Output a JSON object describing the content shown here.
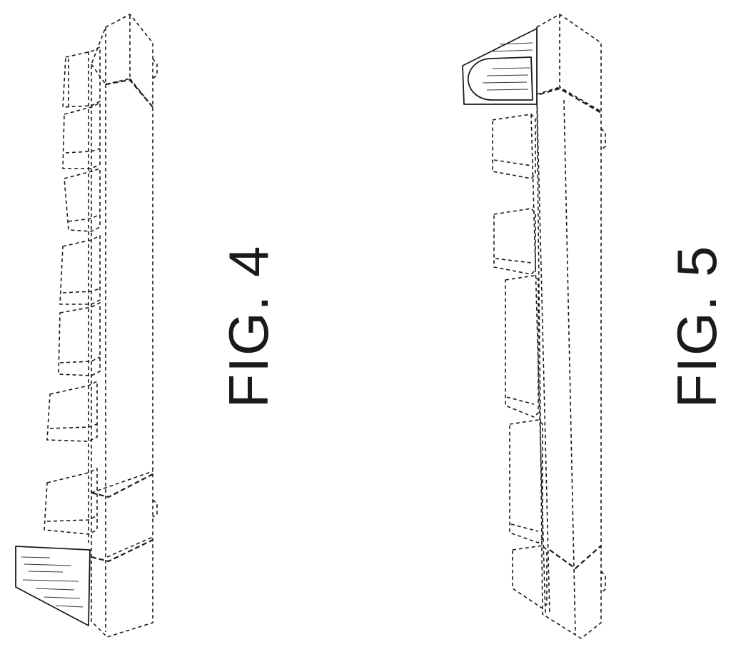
{
  "figures": [
    {
      "label": "FIG. 4"
    },
    {
      "label": "FIG. 5"
    }
  ],
  "colors": {
    "line": "#1a1a1a",
    "background": "#ffffff"
  }
}
